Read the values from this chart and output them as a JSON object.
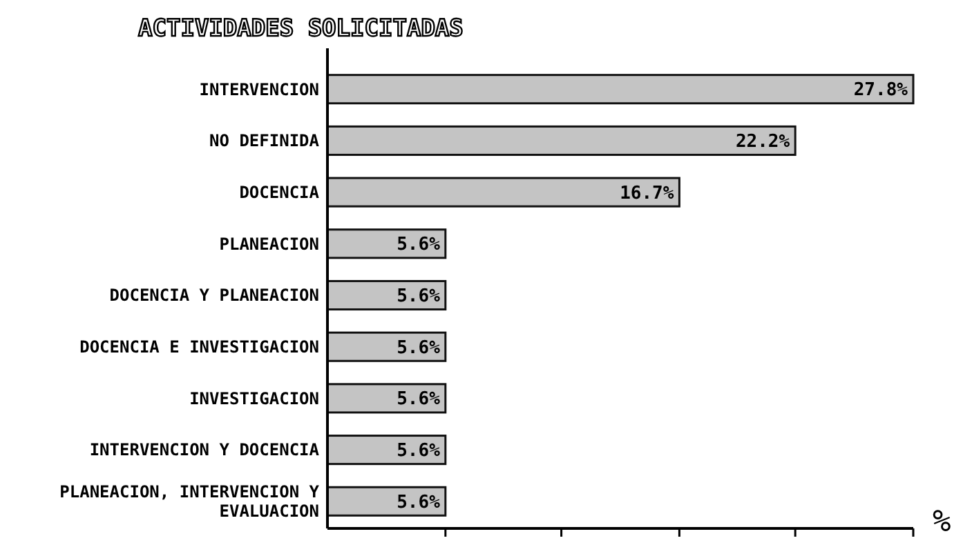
{
  "chart_data": {
    "type": "bar",
    "orientation": "horizontal",
    "title": "ACTIVIDADES SOLICITADAS",
    "xlabel": "%",
    "categories": [
      "INTERVENCION",
      "NO DEFINIDA",
      "DOCENCIA",
      "PLANEACION",
      "DOCENCIA Y PLANEACION",
      "DOCENCIA E INVESTIGACION",
      "INVESTIGACION",
      "INTERVENCION Y DOCENCIA",
      "PLANEACION, INTERVENCION Y EVALUACION"
    ],
    "values": [
      27.8,
      22.2,
      16.7,
      5.6,
      5.6,
      5.6,
      5.6,
      5.6,
      5.6
    ],
    "value_labels": [
      "27.8%",
      "22.2%",
      "16.7%",
      "5.6%",
      "5.6%",
      "5.6%",
      "5.6%",
      "5.6%",
      "5.6%"
    ],
    "color": "#c4c4c4",
    "xlim": [
      0,
      27.8
    ],
    "xticks": [
      {
        "value": 5.6,
        "label": null
      },
      {
        "value": 11.1,
        "label": null
      },
      {
        "value": 16.7,
        "label": null
      },
      {
        "value": 22.2,
        "label": null
      },
      {
        "value": 27.8,
        "label": null
      }
    ],
    "grid": false
  }
}
